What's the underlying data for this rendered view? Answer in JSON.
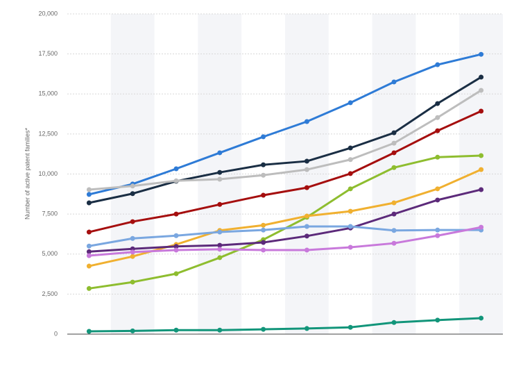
{
  "chart_data": {
    "type": "line",
    "y_label": "Number of active patent families*",
    "categories": [
      null,
      null,
      null,
      null,
      null,
      null,
      null,
      null,
      null,
      null
    ],
    "ylim": [
      0,
      20000
    ],
    "yticks": [
      0,
      {
        "value": 2500,
        "label": "2,500"
      },
      {
        "value": 5000,
        "label": "5,000"
      },
      {
        "value": 7500,
        "label": "7,500"
      },
      {
        "value": 10000,
        "label": "10,000"
      },
      {
        "value": 12500,
        "label": "12,500"
      },
      {
        "value": 15000,
        "label": "15,000"
      },
      {
        "value": 17500,
        "label": "17,500"
      },
      {
        "value": 20000,
        "label": "20,000"
      }
    ],
    "grid": true,
    "series": [
      {
        "color": "#2e7bd6",
        "values": [
          8725,
          9375,
          10325,
          11325,
          12325,
          13275,
          14450,
          15750,
          16825,
          17475
        ]
      },
      {
        "color": "#1a2e44",
        "values": [
          8200,
          8775,
          9550,
          10100,
          10575,
          10800,
          11625,
          12575,
          14400,
          16050
        ]
      },
      {
        "color": "#bdbdbd",
        "values": [
          9025,
          9250,
          9575,
          9675,
          9925,
          10275,
          10900,
          11925,
          13525,
          15225
        ]
      },
      {
        "color": "#a50e0e",
        "values": [
          6375,
          7025,
          7500,
          8100,
          8675,
          9150,
          10025,
          11325,
          12700,
          13925
        ]
      },
      {
        "color": "#8ebd2f",
        "values": [
          2850,
          3250,
          3775,
          4775,
          5900,
          7300,
          9075,
          10400,
          11050,
          11150
        ]
      },
      {
        "color": "#f0b030",
        "values": [
          4250,
          4850,
          5600,
          6475,
          6800,
          7375,
          7675,
          8200,
          9075,
          10275
        ]
      },
      {
        "color": "#5c2a7a",
        "values": [
          5150,
          5325,
          5475,
          5550,
          5725,
          6125,
          6625,
          7500,
          8375,
          9025
        ]
      },
      {
        "color": "#7aa7e0",
        "values": [
          5500,
          5975,
          6150,
          6375,
          6500,
          6725,
          6725,
          6475,
          6500,
          6500
        ]
      },
      {
        "color": "#c879db",
        "values": [
          4900,
          5125,
          5250,
          5300,
          5250,
          5250,
          5425,
          5675,
          6150,
          6675
        ]
      },
      {
        "color": "#12957a",
        "values": [
          175,
          200,
          250,
          250,
          300,
          350,
          425,
          725,
          875,
          1000
        ]
      }
    ]
  }
}
